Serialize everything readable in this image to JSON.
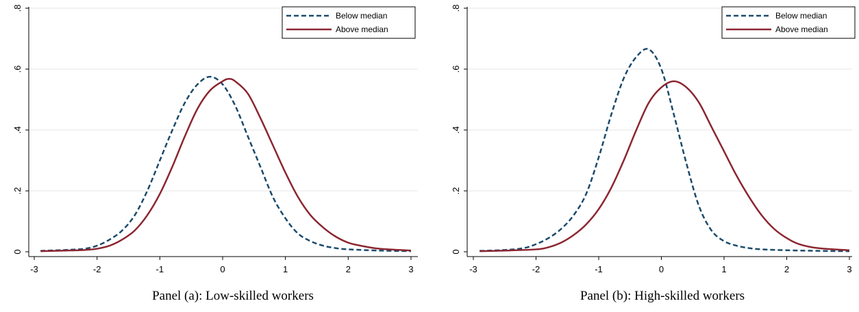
{
  "colors": {
    "below": "#1b4a6b",
    "above": "#8b2631",
    "grid": "#e6e6e6",
    "axis": "#000000"
  },
  "chart_data": [
    {
      "type": "line",
      "title": "Panel (a): Low-skilled workers",
      "xlabel": "",
      "ylabel": "",
      "xlim": [
        -3,
        3
      ],
      "ylim": [
        0,
        0.8
      ],
      "xticks": [
        -3,
        -2,
        -1,
        0,
        1,
        2,
        3
      ],
      "yticks": [
        0,
        0.2,
        0.4,
        0.6,
        0.8
      ],
      "yticklabels": [
        "0",
        ".2",
        ".4",
        ".6",
        ".8"
      ],
      "grid": true,
      "legend_position": "top-right",
      "series": [
        {
          "name": "Below median",
          "style": "dashed",
          "color": "#1b4a6b",
          "x": [
            -2.9,
            -2.5,
            -2.2,
            -2.0,
            -1.8,
            -1.6,
            -1.4,
            -1.2,
            -1.0,
            -0.8,
            -0.6,
            -0.4,
            -0.2,
            0.0,
            0.2,
            0.4,
            0.6,
            0.8,
            1.0,
            1.2,
            1.4,
            1.6,
            1.8,
            2.0,
            2.5,
            3.0
          ],
          "y": [
            0.003,
            0.006,
            0.01,
            0.02,
            0.04,
            0.07,
            0.12,
            0.2,
            0.3,
            0.4,
            0.49,
            0.55,
            0.575,
            0.55,
            0.48,
            0.38,
            0.28,
            0.18,
            0.11,
            0.06,
            0.035,
            0.02,
            0.012,
            0.008,
            0.004,
            0.002
          ]
        },
        {
          "name": "Above median",
          "style": "solid",
          "color": "#8b2631",
          "x": [
            -2.9,
            -2.5,
            -2.2,
            -2.0,
            -1.8,
            -1.6,
            -1.4,
            -1.2,
            -1.0,
            -0.8,
            -0.6,
            -0.4,
            -0.2,
            0.0,
            0.1,
            0.2,
            0.4,
            0.6,
            0.8,
            1.0,
            1.2,
            1.4,
            1.6,
            1.8,
            2.0,
            2.2,
            2.5,
            3.0
          ],
          "y": [
            0.002,
            0.004,
            0.006,
            0.01,
            0.02,
            0.04,
            0.07,
            0.12,
            0.19,
            0.28,
            0.38,
            0.47,
            0.53,
            0.56,
            0.568,
            0.56,
            0.52,
            0.44,
            0.35,
            0.26,
            0.18,
            0.12,
            0.08,
            0.05,
            0.03,
            0.02,
            0.01,
            0.004
          ]
        }
      ]
    },
    {
      "type": "line",
      "title": "Panel (b): High-skilled workers",
      "xlabel": "",
      "ylabel": "",
      "xlim": [
        -3,
        3
      ],
      "ylim": [
        0,
        0.8
      ],
      "xticks": [
        -3,
        -2,
        -1,
        0,
        1,
        2,
        3
      ],
      "yticks": [
        0,
        0.2,
        0.4,
        0.6,
        0.8
      ],
      "yticklabels": [
        "0",
        ".2",
        ".4",
        ".6",
        ".8"
      ],
      "grid": true,
      "legend_position": "top-right",
      "series": [
        {
          "name": "Below median",
          "style": "dashed",
          "color": "#1b4a6b",
          "x": [
            -2.9,
            -2.5,
            -2.2,
            -2.0,
            -1.8,
            -1.6,
            -1.4,
            -1.2,
            -1.0,
            -0.8,
            -0.6,
            -0.4,
            -0.2,
            0.0,
            0.2,
            0.4,
            0.6,
            0.8,
            1.0,
            1.2,
            1.4,
            1.6,
            2.0,
            2.5,
            3.0
          ],
          "y": [
            0.003,
            0.006,
            0.012,
            0.025,
            0.045,
            0.075,
            0.12,
            0.19,
            0.31,
            0.45,
            0.57,
            0.64,
            0.665,
            0.6,
            0.45,
            0.29,
            0.15,
            0.07,
            0.035,
            0.02,
            0.012,
            0.008,
            0.005,
            0.003,
            0.002
          ]
        },
        {
          "name": "Above median",
          "style": "solid",
          "color": "#8b2631",
          "x": [
            -2.9,
            -2.5,
            -2.0,
            -1.8,
            -1.6,
            -1.4,
            -1.2,
            -1.0,
            -0.8,
            -0.6,
            -0.4,
            -0.2,
            0.0,
            0.2,
            0.4,
            0.6,
            0.8,
            1.0,
            1.2,
            1.4,
            1.6,
            1.8,
            2.0,
            2.2,
            2.5,
            3.0
          ],
          "y": [
            0.002,
            0.004,
            0.008,
            0.015,
            0.03,
            0.055,
            0.09,
            0.14,
            0.21,
            0.3,
            0.4,
            0.49,
            0.54,
            0.56,
            0.54,
            0.49,
            0.41,
            0.33,
            0.25,
            0.18,
            0.12,
            0.075,
            0.045,
            0.025,
            0.012,
            0.005
          ]
        }
      ]
    }
  ]
}
